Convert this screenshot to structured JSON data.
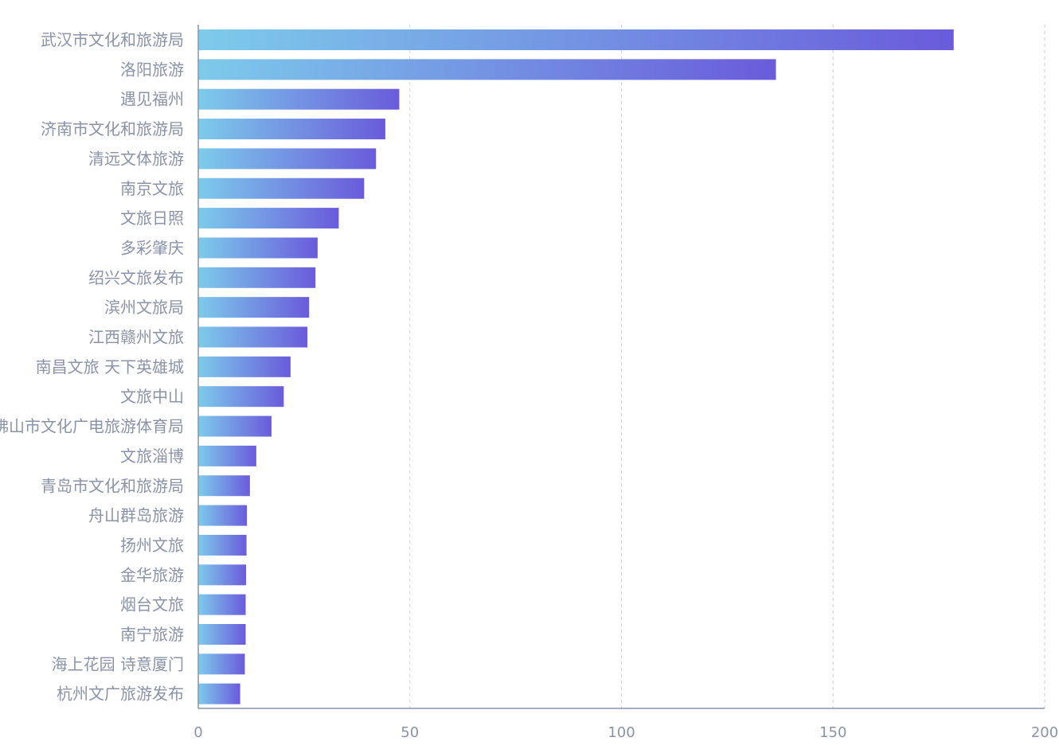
{
  "chart_data": {
    "type": "bar",
    "orientation": "horizontal",
    "categories": [
      "武汉市文化和旅游局",
      "洛阳旅游",
      "遇见福州",
      "济南市文化和旅游局",
      "清远文体旅游",
      "南京文旅",
      "文旅日照",
      "多彩肇庆",
      "绍兴文旅发布",
      "滨州文旅局",
      "江西赣州文旅",
      "南昌文旅 天下英雄城",
      "文旅中山",
      "佛山市文化广电旅游体育局",
      "文旅淄博",
      "青岛市文化和旅游局",
      "舟山群岛旅游",
      "扬州文旅",
      "金华旅游",
      "烟台文旅",
      "南宁旅游",
      "海上花园 诗意厦门",
      "杭州文广旅游发布"
    ],
    "values": [
      178.5,
      136.5,
      47.5,
      44.2,
      42,
      39.2,
      33.2,
      28.2,
      27.7,
      26.2,
      25.8,
      21.8,
      20.2,
      17.3,
      13.7,
      12.2,
      11.5,
      11.4,
      11.3,
      11.2,
      11.2,
      11.0,
      9.9
    ],
    "xlim": [
      0,
      200
    ],
    "xticks": [
      "0",
      "50",
      "100",
      "150",
      "200"
    ],
    "grid": true,
    "gradient": [
      "#7dcbeb",
      "#6a5bdb"
    ]
  }
}
